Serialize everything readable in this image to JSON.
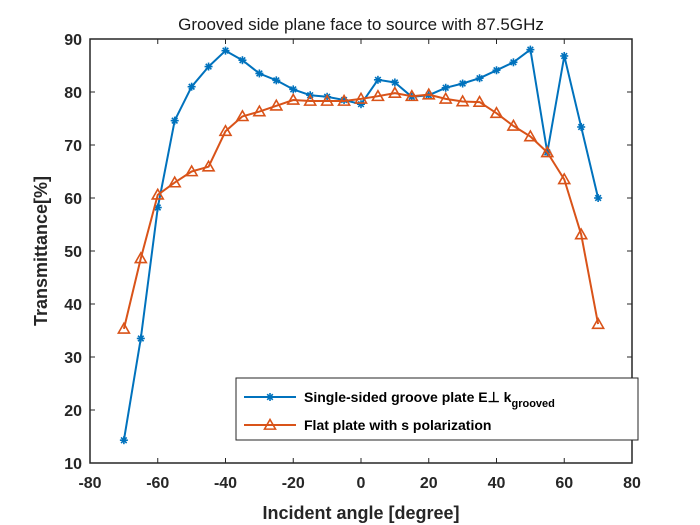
{
  "chart_data": {
    "type": "line",
    "title": "Grooved side plane face to source with 87.5GHz",
    "xlabel": "Incident angle [degree]",
    "ylabel": "Transmittance[%]",
    "xlim": [
      -80,
      80
    ],
    "ylim": [
      10,
      90
    ],
    "xticks": [
      -80,
      -60,
      -40,
      -20,
      0,
      20,
      40,
      60,
      80
    ],
    "yticks": [
      10,
      20,
      30,
      40,
      50,
      60,
      70,
      80,
      90
    ],
    "grid": false,
    "legend_position": "bottom-right",
    "series": [
      {
        "name": "Single-sided groove plate E⊥ k",
        "name_subscript": "grooved",
        "color": "#0072BD",
        "marker": "asterisk",
        "x": [
          -70,
          -65,
          -60,
          -55,
          -50,
          -45,
          -40,
          -35,
          -30,
          -25,
          -20,
          -15,
          -10,
          -5,
          0,
          5,
          10,
          15,
          20,
          25,
          30,
          35,
          40,
          45,
          50,
          55,
          60,
          65,
          70
        ],
        "y": [
          14.3,
          33.5,
          58.2,
          74.6,
          81,
          84.8,
          87.8,
          86,
          83.5,
          82.2,
          80.5,
          79.4,
          79.1,
          78.5,
          77.7,
          82.3,
          81.8,
          79.1,
          79.4,
          80.8,
          81.6,
          82.6,
          84.1,
          85.6,
          88,
          68.6,
          86.8,
          73.4,
          60
        ]
      },
      {
        "name": "Flat plate with s polarization",
        "color": "#D95319",
        "marker": "triangle",
        "x": [
          -70,
          -65,
          -60,
          -55,
          -50,
          -45,
          -40,
          -35,
          -30,
          -25,
          -20,
          -15,
          -10,
          -5,
          0,
          5,
          10,
          15,
          20,
          25,
          30,
          35,
          40,
          45,
          50,
          55,
          60,
          65,
          70
        ],
        "y": [
          35.3,
          48.6,
          60.6,
          62.9,
          65,
          65.9,
          72.6,
          75.4,
          76.3,
          77.4,
          78.5,
          78.3,
          78.3,
          78.3,
          78.7,
          79.2,
          79.8,
          79.2,
          79.5,
          78.7,
          78.2,
          78.1,
          76,
          73.6,
          71.6,
          68.6,
          63.5,
          53.1,
          36.2
        ]
      }
    ]
  }
}
